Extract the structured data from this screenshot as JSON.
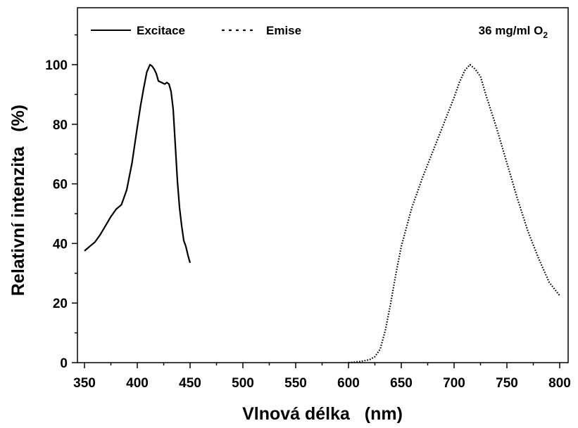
{
  "chart_data": {
    "type": "line",
    "title": "",
    "xlabel": "Vlnová délka   (nm)",
    "ylabel": "Relativní intenzita   (%)",
    "xlim": [
      350,
      800
    ],
    "ylim": [
      0,
      115
    ],
    "x_ticks": [
      350,
      400,
      450,
      500,
      550,
      600,
      650,
      700,
      750,
      800
    ],
    "y_ticks": [
      0,
      20,
      40,
      60,
      80,
      100
    ],
    "grid": false,
    "legend_position": "top-left",
    "annotation": {
      "text": "36 mg/ml O",
      "subscript": "2"
    },
    "series": [
      {
        "name": "Excitace",
        "style": "solid",
        "x": [
          350,
          355,
          360,
          365,
          370,
          375,
          380,
          385,
          390,
          395,
          400,
          403,
          406,
          409,
          412,
          414,
          416,
          418,
          420,
          423,
          426,
          428,
          430,
          432,
          434,
          436,
          438,
          440,
          442,
          444,
          446,
          448,
          450
        ],
        "y": [
          37.5,
          39,
          40.5,
          43,
          46,
          49,
          51.5,
          53,
          58,
          67,
          79,
          86,
          92,
          97.5,
          100,
          99.5,
          98.5,
          97,
          94.5,
          94,
          93.5,
          94,
          93.5,
          91,
          85,
          73,
          61,
          52,
          46,
          41,
          39,
          36,
          33.5
        ]
      },
      {
        "name": "Emise",
        "style": "dotted",
        "x": [
          600,
          610,
          620,
          625,
          630,
          635,
          640,
          645,
          650,
          660,
          670,
          680,
          690,
          700,
          705,
          710,
          715,
          720,
          725,
          730,
          740,
          750,
          760,
          770,
          780,
          790,
          800
        ],
        "y": [
          0,
          0.3,
          1,
          2,
          4.5,
          11,
          20,
          30,
          39,
          52,
          62,
          71,
          80,
          89,
          94,
          98,
          100,
          98.5,
          96,
          90,
          79,
          67,
          55,
          44,
          35,
          27,
          22.5
        ]
      }
    ]
  }
}
